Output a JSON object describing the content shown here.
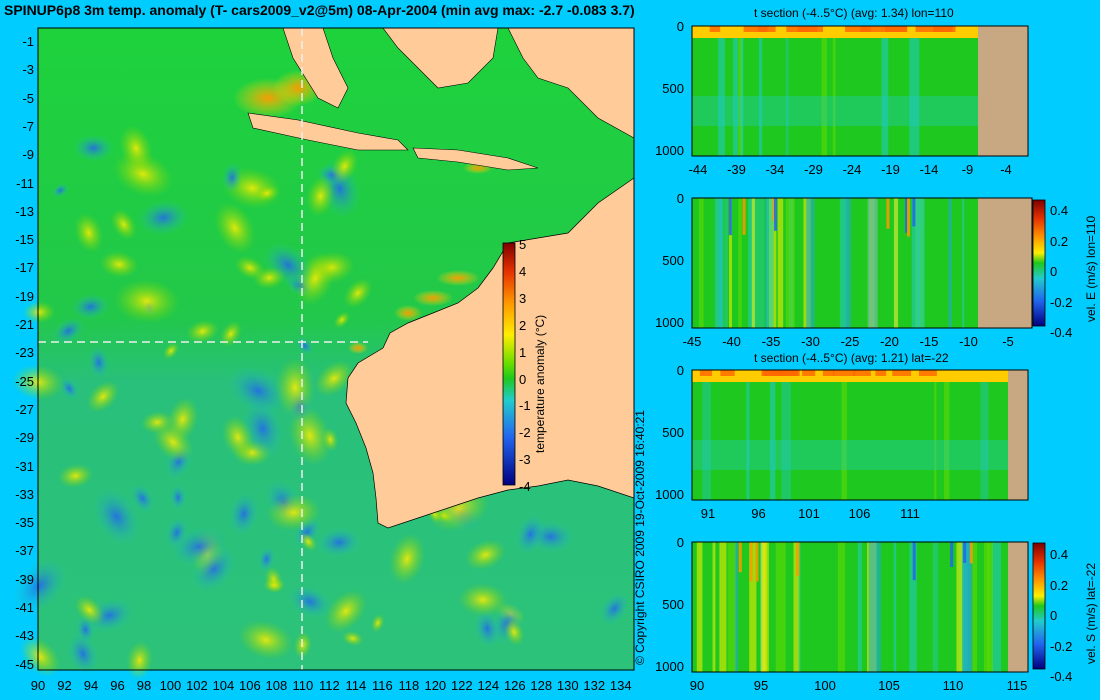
{
  "main": {
    "title": "SPINUP6p8 3m temp. anomaly (T- cars2009_v2@5m) 08-Apr-2004 (min avg max: -2.7 -0.083 3.7)",
    "copyright": "© Copyright CSIRO 2009   19-Oct-2009 16:40:21"
  },
  "colors": {
    "background": "#00ccff",
    "land": "#ffcc99",
    "bottom": "#c8a882",
    "cold": "#1e64e6",
    "neutral": "#1ec81e",
    "warm": "#ff9900"
  },
  "chart_data": [
    {
      "type": "heatmap",
      "name": "map",
      "x_ticks": [
        "90",
        "92",
        "94",
        "96",
        "98",
        "100",
        "102",
        "104",
        "106",
        "108",
        "110",
        "112",
        "114",
        "116",
        "118",
        "120",
        "122",
        "124",
        "126",
        "128",
        "130",
        "132",
        "134"
      ],
      "y_ticks": [
        "-1",
        "-3",
        "-5",
        "-7",
        "-9",
        "-11",
        "-13",
        "-15",
        "-17",
        "-19",
        "-21",
        "-23",
        "-25",
        "-27",
        "-29",
        "-31",
        "-33",
        "-35",
        "-37",
        "-39",
        "-41",
        "-43",
        "-45"
      ],
      "xlim": [
        90,
        135
      ],
      "ylim": [
        -45,
        0
      ],
      "section_lon": 110,
      "section_lat": -22,
      "colorbar": {
        "label": "temperature anomaly (°C)",
        "ticks": [
          "5",
          "4",
          "3",
          "2",
          "1",
          "0",
          "-1",
          "-2",
          "-3",
          "-4"
        ],
        "range": [
          -4,
          5
        ]
      }
    },
    {
      "type": "heatmap",
      "name": "t-section-lon",
      "title": "t section (-4..5°C) (avg: 1.34) lon=110",
      "x_ticks": [
        "-44",
        "-39",
        "-34",
        "-29",
        "-24",
        "-19",
        "-14",
        "-9",
        "-4"
      ],
      "y_ticks": [
        "0",
        "500",
        "1000"
      ]
    },
    {
      "type": "heatmap",
      "name": "vel-e-section",
      "x_ticks": [
        "-45",
        "-40",
        "-35",
        "-30",
        "-25",
        "-20",
        "-15",
        "-10",
        "-5"
      ],
      "y_ticks": [
        "0",
        "500",
        "1000"
      ],
      "colorbar": {
        "label": "vel. E (m/s) lon=110",
        "ticks": [
          "0.4",
          "0.2",
          "0",
          "-0.2",
          "-0.4"
        ]
      }
    },
    {
      "type": "heatmap",
      "name": "t-section-lat",
      "title": "t section (-4..5°C) (avg: 1.21) lat=-22",
      "x_ticks": [
        "91",
        "96",
        "101",
        "106",
        "111"
      ],
      "y_ticks": [
        "0",
        "500",
        "1000"
      ]
    },
    {
      "type": "heatmap",
      "name": "vel-s-section",
      "x_ticks": [
        "90",
        "95",
        "100",
        "105",
        "110",
        "115"
      ],
      "y_ticks": [
        "0",
        "500",
        "1000"
      ],
      "colorbar": {
        "label": "vel. S (m/s) lat=-22",
        "ticks": [
          "0.4",
          "0.2",
          "0",
          "-0.2",
          "-0.4"
        ]
      }
    }
  ]
}
